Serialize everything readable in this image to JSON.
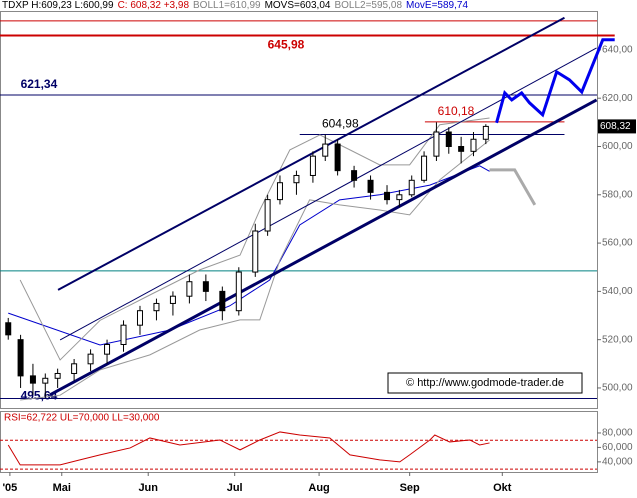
{
  "chart_data": {
    "type": "candlestick",
    "header": [
      "TDXP H:609,23 L:600,99",
      "C: 608,32 +3,98",
      "BOLL1=610,99",
      "MOVS=603,04",
      "BOLL2=595,08",
      "MovE=589,74"
    ],
    "header_colors": [
      "#000000",
      "#cc0000",
      "#808080",
      "#000000",
      "#808080",
      "#0000cc"
    ],
    "last_price": {
      "value": 608.32,
      "label": "608,32"
    },
    "copyright": "© http://www.godmode-trader.de",
    "xlim": [
      0,
      145
    ],
    "xticks": [
      {
        "value": 2.4,
        "label": "'05"
      },
      {
        "value": 15,
        "label": "Mai"
      },
      {
        "value": 36,
        "label": "Jun"
      },
      {
        "value": 57,
        "label": "Jul"
      },
      {
        "value": 77.5,
        "label": "Aug"
      },
      {
        "value": 99.5,
        "label": "Sep"
      },
      {
        "value": 122,
        "label": "Okt"
      }
    ],
    "ylim": [
      491.7,
      655.7
    ],
    "yticks": [
      {
        "value": 500,
        "label": "500,00"
      },
      {
        "value": 520,
        "label": "520,00"
      },
      {
        "value": 540,
        "label": "540,00"
      },
      {
        "value": 560,
        "label": "560,00"
      },
      {
        "value": 580,
        "label": "580,00"
      },
      {
        "value": 600,
        "label": "600,00"
      },
      {
        "value": 620,
        "label": "620,00"
      },
      {
        "value": 640,
        "label": "640,00"
      }
    ],
    "candles": {
      "x": [
        2,
        5,
        8,
        11,
        14,
        18,
        22,
        26,
        30,
        34,
        38,
        42,
        46,
        50,
        54,
        58,
        62,
        65,
        68,
        72,
        76,
        79,
        82,
        86,
        90,
        94,
        97,
        100,
        103,
        106,
        109,
        112,
        115,
        118
      ],
      "open": [
        527,
        520,
        505,
        502,
        504,
        506,
        510,
        514,
        518,
        526,
        532,
        535,
        538,
        544,
        540,
        532,
        548,
        565,
        578,
        585,
        588,
        596,
        601,
        590,
        586,
        581,
        578,
        580,
        586,
        596,
        606,
        600,
        598,
        603
      ],
      "high": [
        529,
        522,
        510,
        506,
        508,
        512,
        516,
        520,
        528,
        534,
        537,
        540,
        547,
        547,
        542,
        550,
        568,
        580,
        588,
        590,
        598,
        605,
        603,
        592,
        588,
        584,
        582,
        588,
        598,
        610,
        608,
        604,
        606,
        609.23
      ],
      "low": [
        520,
        500,
        497,
        496,
        500,
        503,
        507,
        510,
        515,
        522,
        528,
        530,
        535,
        536,
        528,
        530,
        546,
        563,
        576,
        580,
        585,
        594,
        588,
        583,
        578,
        576,
        575,
        579,
        585,
        594,
        597,
        593,
        596,
        600.99
      ],
      "close": [
        522,
        505,
        502,
        504,
        506,
        510,
        514,
        518,
        526,
        532,
        535,
        538,
        544,
        540,
        532,
        548,
        565,
        578,
        585,
        588,
        596,
        601,
        590,
        586,
        581,
        578,
        580,
        586,
        596,
        606,
        600,
        598,
        603,
        608.32
      ]
    },
    "lines": [
      {
        "color": "#0000cc",
        "width": 1,
        "x": [
          2,
          24.3,
          41.3,
          55.8,
          65.5,
          72.8,
          82.5,
          92.2,
          104.4,
          116.5,
          118.9
        ],
        "values": [
          531,
          517.8,
          524,
          534,
          544.7,
          567.5,
          577.9,
          580,
          584,
          592,
          589.74
        ]
      },
      {
        "color": "#999999",
        "width": 1,
        "x": [
          4.9,
          14.6,
          24.3,
          36.4,
          48.5,
          58.3,
          63.1,
          70.4,
          77.7,
          85,
          92.2,
          99.5,
          106.8,
          118.9
        ],
        "values": [
          544.7,
          511.6,
          528,
          538.5,
          548.9,
          555,
          573.7,
          598.6,
          604.8,
          598.6,
          592.4,
          592.4,
          609,
          611.8
        ]
      },
      {
        "color": "#999999",
        "width": 1,
        "x": [
          4.9,
          14.6,
          24.3,
          36.4,
          48.5,
          58.3,
          63.1,
          68,
          75.2,
          82.5,
          92.2,
          99.5,
          106.8,
          118.9
        ],
        "values": [
          495,
          497,
          507.5,
          513.7,
          524,
          528.2,
          528.2,
          553,
          577.9,
          575.8,
          573.7,
          571.7,
          586.2,
          602.7
        ]
      },
      {
        "color": "#000066",
        "width": 2,
        "x": [
          14.1,
          137.1
        ],
        "values": [
          540.6,
          653.3
        ]
      },
      {
        "color": "#000066",
        "width": 1,
        "x": [
          14.6,
          144.9
        ],
        "values": [
          519.9,
          640.8
        ]
      },
      {
        "color": "#000066",
        "width": 3,
        "x": [
          12.1,
          144.9
        ],
        "values": [
          497.1,
          619.3
        ]
      },
      {
        "color": "#0000ee",
        "width": 3,
        "x": [
          120.6,
          122.6,
          124.3,
          126.7,
          128.6,
          131.8,
          135.2,
          138.3,
          141.3,
          146.4,
          149.3
        ],
        "values": [
          609.8,
          622.2,
          619.3,
          622.2,
          618.1,
          613.1,
          630.9,
          627.6,
          622.6,
          644.2,
          644.2
        ]
      },
      {
        "color": "#aaaaaa",
        "width": 3,
        "x": [
          118.9,
          125,
          129.9
        ],
        "values": [
          590.3,
          590.3,
          575.8
        ]
      }
    ],
    "levels": [
      {
        "value": 652,
        "color": "#cc0000",
        "width": 1,
        "x": [
          0,
          145
        ]
      },
      {
        "value": 645.98,
        "label": "645,98",
        "color": "#cc0000",
        "width": 2,
        "x": [
          0,
          149.3
        ],
        "label_x": 65
      },
      {
        "value": 621.34,
        "label": "621,34",
        "color": "#000066",
        "width": 1,
        "x": [
          0,
          145
        ],
        "label_x": 5
      },
      {
        "value": 610.18,
        "label": "610,18",
        "color": "#cc0000",
        "width": 1,
        "x": [
          103.2,
          137.1
        ],
        "label_x": 106.3
      },
      {
        "value": 604.98,
        "label": "604,98",
        "color": "#000066",
        "width": 1,
        "x": [
          72.8,
          137.1
        ],
        "label_x": 78.2
      },
      {
        "value": 548.5,
        "color": "#008080",
        "width": 1,
        "x": [
          0,
          145
        ]
      },
      {
        "value": 495.64,
        "label": "495,64",
        "color": "#000066",
        "width": 1,
        "x": [
          0,
          145
        ],
        "label_x": 5
      }
    ],
    "rsi": {
      "header": "RSI=62,722 UL=70,000 LL=30,000",
      "color": "#cc0000",
      "ylim": [
        26,
        109
      ],
      "yticks": [
        {
          "value": 40,
          "label": "40,000"
        },
        {
          "value": 60,
          "label": "60,000"
        },
        {
          "value": 80,
          "label": "80,000"
        }
      ],
      "bands": [
        70,
        30
      ],
      "x": [
        2,
        4.9,
        9.7,
        14.6,
        19.4,
        24.3,
        31.6,
        36.4,
        43.7,
        53.4,
        58.3,
        63.1,
        68,
        72.8,
        80.1,
        85,
        92.2,
        97.1,
        99.5,
        104.4,
        105.6,
        109.2,
        114.1,
        116.5,
        118.9
      ],
      "values": [
        63.4,
        35.9,
        35.9,
        35.9,
        42.8,
        49.7,
        59.3,
        73.1,
        63.4,
        70.3,
        56.6,
        70.3,
        81.4,
        77.2,
        73.1,
        49.7,
        42.8,
        40,
        49.7,
        70.3,
        77.2,
        67.6,
        70.3,
        63.4,
        66.2
      ]
    }
  }
}
